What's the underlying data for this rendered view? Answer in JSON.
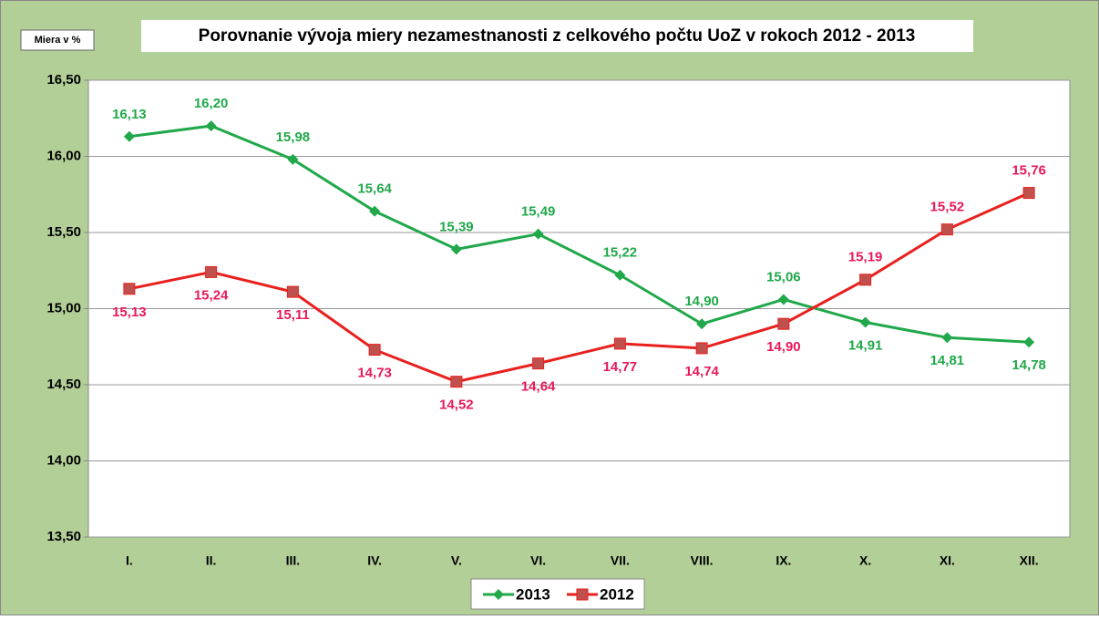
{
  "chart_data": {
    "type": "line",
    "title": "Porovnanie vývoja miery  nezamestnanosti z celkového počtu UoZ v rokoch 2012 - 2013",
    "y_label": "Miera v %",
    "categories": [
      "I.",
      "II.",
      "III.",
      "IV.",
      "V.",
      "VI.",
      "VII.",
      "VIII.",
      "IX.",
      "X.",
      "XI.",
      "XII."
    ],
    "series": [
      {
        "name": "2013",
        "color": "#20a84a",
        "label_color": "#20a84a",
        "marker": "diamond",
        "values": [
          16.13,
          16.2,
          15.98,
          15.64,
          15.39,
          15.49,
          15.22,
          14.9,
          15.06,
          14.91,
          14.81,
          14.78
        ],
        "value_labels": [
          "16,13",
          "16,20",
          "15,98",
          "15,64",
          "15,39",
          "15,49",
          "15,22",
          "14,90",
          "15,06",
          "14,91",
          "14,81",
          "14,78"
        ]
      },
      {
        "name": "2012",
        "color": "#e8201e",
        "label_color": "#e8185a",
        "marker": "square",
        "values": [
          15.13,
          15.24,
          15.11,
          14.73,
          14.52,
          14.64,
          14.77,
          14.74,
          14.9,
          15.19,
          15.52,
          15.76
        ],
        "value_labels": [
          "15,13",
          "15,24",
          "15,11",
          "14,73",
          "14,52",
          "14,64",
          "14,77",
          "14,74",
          "14,90",
          "15,19",
          "15,52",
          "15,76"
        ]
      }
    ],
    "ylim": [
      13.5,
      16.5
    ],
    "yticks": [
      {
        "value": 13.5,
        "label": "13,50"
      },
      {
        "value": 14,
        "label": "14,00"
      },
      {
        "value": 14.5,
        "label": "14,50"
      },
      {
        "value": 15,
        "label": "15,00"
      },
      {
        "value": 15.5,
        "label": "15,50"
      },
      {
        "value": 16,
        "label": "16,00"
      },
      {
        "value": 16.5,
        "label": "16,50"
      }
    ],
    "grid": true,
    "legend": "bottom"
  }
}
